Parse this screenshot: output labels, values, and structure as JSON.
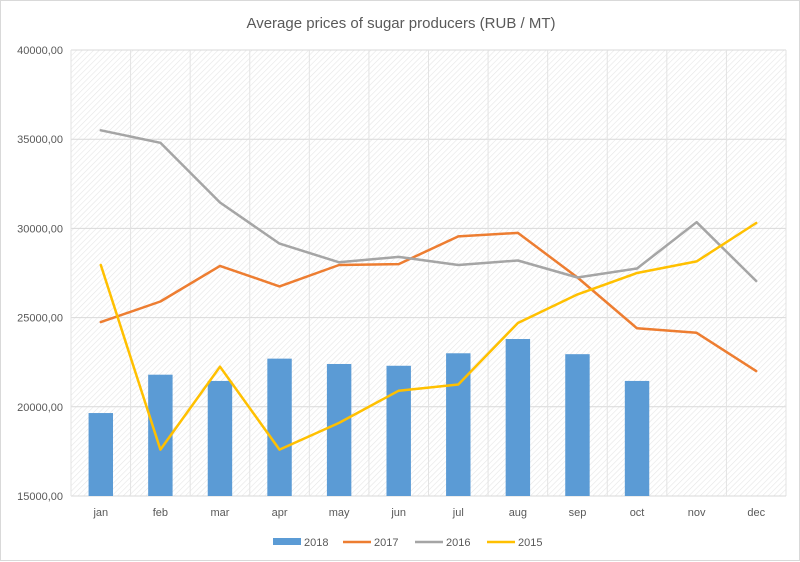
{
  "chart_data": {
    "type": "bar",
    "title": "Average prices of sugar producers (RUB / MT)",
    "categories": [
      "jan",
      "feb",
      "mar",
      "apr",
      "may",
      "jun",
      "jul",
      "aug",
      "sep",
      "oct",
      "nov",
      "dec"
    ],
    "ylim": [
      15000,
      40000
    ],
    "yticks": [
      "15000,00",
      "20000,00",
      "25000,00",
      "30000,00",
      "35000,00",
      "40000,00"
    ],
    "ytick_values": [
      15000,
      20000,
      25000,
      30000,
      35000,
      40000
    ],
    "grid": true,
    "legend_position": "bottom",
    "series": [
      {
        "name": "2018",
        "kind": "bar",
        "color": "#5b9bd5",
        "values": [
          19650,
          21800,
          21450,
          22700,
          22400,
          22300,
          23000,
          23800,
          22950,
          21450,
          null,
          null
        ]
      },
      {
        "name": "2017",
        "kind": "line",
        "color": "#ed7d31",
        "values": [
          24750,
          25900,
          27900,
          26750,
          27950,
          28000,
          29550,
          29750,
          27250,
          24400,
          24150,
          22000
        ]
      },
      {
        "name": "2016",
        "kind": "line",
        "color": "#a5a5a5",
        "values": [
          35500,
          34800,
          31450,
          29150,
          28100,
          28400,
          27950,
          28200,
          27250,
          27750,
          30350,
          27050
        ]
      },
      {
        "name": "2015",
        "kind": "line",
        "color": "#ffc000",
        "values": [
          27950,
          17600,
          22250,
          17600,
          19100,
          20900,
          21250,
          24700,
          26300,
          27500,
          28150,
          30300
        ]
      }
    ]
  }
}
